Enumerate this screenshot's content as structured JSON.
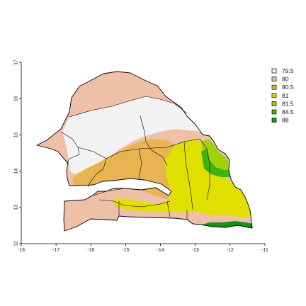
{
  "map": {
    "x_ticks": [
      "-18",
      "-17",
      "-16",
      "-15",
      "-14",
      "-13",
      "-12",
      "-11"
    ],
    "y_ticks": [
      "12",
      "13",
      "14",
      "15",
      "16",
      "17"
    ],
    "xlim": [
      -18,
      -11
    ],
    "ylim": [
      12,
      17
    ]
  },
  "legend": {
    "items": [
      {
        "label": "79.5",
        "color": "#f2f2f2"
      },
      {
        "label": "80",
        "color": "#eec0a8"
      },
      {
        "label": "80.5",
        "color": "#e8b452"
      },
      {
        "label": "81",
        "color": "#e0e000"
      },
      {
        "label": "81.5",
        "color": "#9fd20a"
      },
      {
        "label": "84.5",
        "color": "#3cb414"
      },
      {
        "label": "88",
        "color": "#119611"
      }
    ]
  }
}
